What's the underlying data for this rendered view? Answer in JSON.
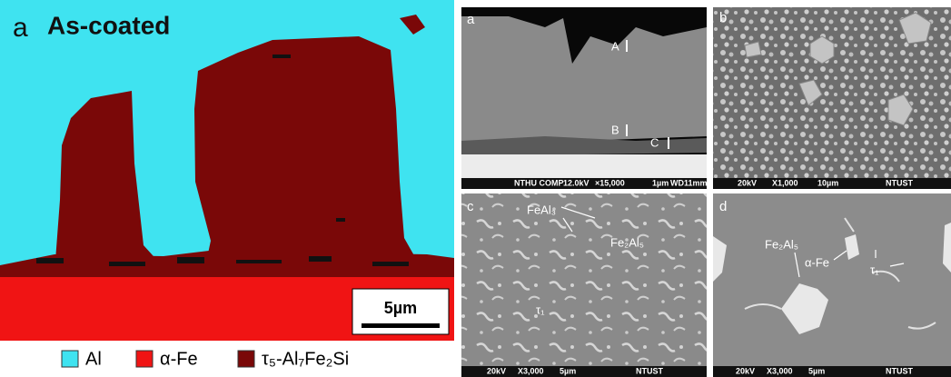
{
  "left_panel": {
    "label": "a",
    "title": "As-coated",
    "scale_bar": "5µm",
    "legend": [
      {
        "label": "Al",
        "color": "#3fe3f0"
      },
      {
        "label": "α-Fe",
        "color": "#f01414"
      },
      {
        "label": "τ₅-Al₇Fe₂Si",
        "color": "#7a0808"
      }
    ]
  },
  "panels": [
    {
      "label": "a",
      "annotations": [
        "A",
        "B",
        "C"
      ],
      "footer": [
        "NTHU COMP",
        "12.0kV",
        "×15,000",
        "1µm",
        "WD11mm"
      ]
    },
    {
      "label": "b",
      "footer": [
        "20kV",
        "X1,000",
        "10µm",
        "NTUST"
      ]
    },
    {
      "label": "c",
      "annotations": [
        "FeAl₃",
        "Fe₂Al₅",
        "τ₁"
      ],
      "footer": [
        "20kV",
        "X3,000",
        "5µm",
        "NTUST"
      ]
    },
    {
      "label": "d",
      "annotations": [
        "Fe₂Al₅",
        "α-Fe",
        "τ₁"
      ],
      "footer": [
        "20kV",
        "X3,000",
        "5µm",
        "NTUST"
      ]
    }
  ]
}
